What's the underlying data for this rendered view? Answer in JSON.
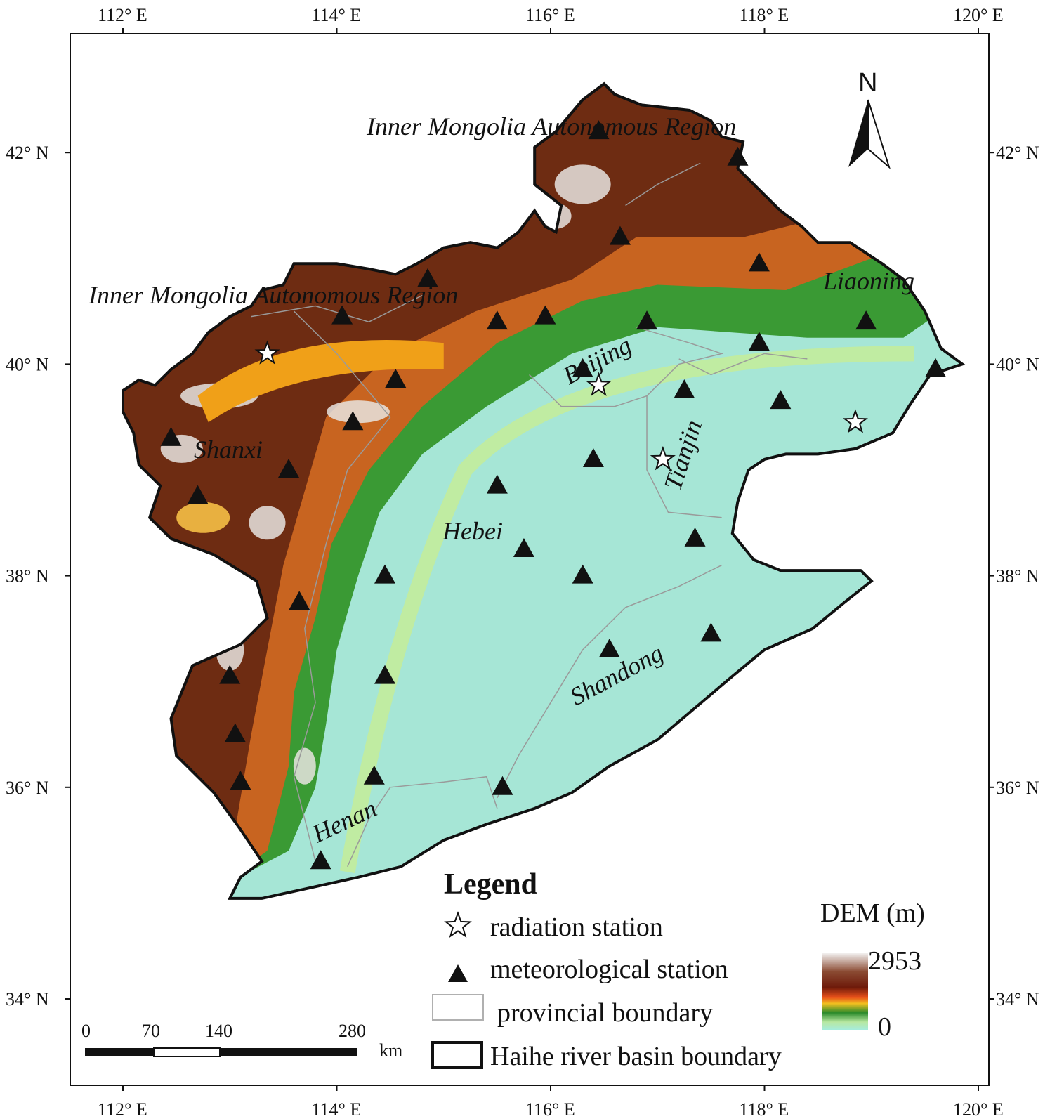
{
  "map": {
    "axes": {
      "longitude_labels": [
        "112° E",
        "114° E",
        "116° E",
        "118° E",
        "120° E"
      ],
      "latitude_labels": [
        "34° N",
        "36° N",
        "38° N",
        "40° N",
        "42° N"
      ]
    },
    "regions": {
      "inner_mongolia_north": "Inner Mongolia Autonomous Region",
      "inner_mongolia_west": "Inner Mongolia Autonomous Region",
      "liaoning": "Liaoning",
      "beijing": "Beijing",
      "tianjin": "Tianjin",
      "shanxi": "Shanxi",
      "hebei": "Hebei",
      "shandong": "Shandong",
      "henan": "Henan"
    },
    "north_arrow": {
      "label": "N"
    },
    "scale_bar": {
      "ticks": [
        "0",
        "70",
        "140",
        "280"
      ],
      "unit": "km"
    },
    "legend": {
      "title": "Legend",
      "radiation_station": "radiation station",
      "meteorological_station": "meteorological station",
      "provincial_boundary": "provincial boundary",
      "basin_boundary": "Haihe river basin boundary"
    },
    "dem": {
      "title": "DEM (m)",
      "max_label": "2953",
      "min_label": "0"
    },
    "colors": {
      "plain": "#a6e6d6",
      "low_green": "#2f9a2f",
      "mid_orange": "#e88a1a",
      "high_brown": "#6e2c12",
      "peak_white": "#f4f4f4"
    },
    "meteorological_stations": [
      {
        "lon": 116.45,
        "lat": 42.2
      },
      {
        "lon": 117.75,
        "lat": 41.95
      },
      {
        "lon": 116.65,
        "lat": 41.2
      },
      {
        "lon": 117.95,
        "lat": 40.95
      },
      {
        "lon": 114.85,
        "lat": 40.8
      },
      {
        "lon": 114.05,
        "lat": 40.45
      },
      {
        "lon": 115.5,
        "lat": 40.4
      },
      {
        "lon": 115.95,
        "lat": 40.45
      },
      {
        "lon": 116.9,
        "lat": 40.4
      },
      {
        "lon": 117.95,
        "lat": 40.2
      },
      {
        "lon": 118.95,
        "lat": 40.4
      },
      {
        "lon": 119.6,
        "lat": 39.95
      },
      {
        "lon": 114.55,
        "lat": 39.85
      },
      {
        "lon": 116.3,
        "lat": 39.95
      },
      {
        "lon": 117.25,
        "lat": 39.75
      },
      {
        "lon": 118.15,
        "lat": 39.65
      },
      {
        "lon": 112.45,
        "lat": 39.3
      },
      {
        "lon": 114.15,
        "lat": 39.45
      },
      {
        "lon": 113.55,
        "lat": 39.0
      },
      {
        "lon": 116.4,
        "lat": 39.1
      },
      {
        "lon": 112.7,
        "lat": 38.75
      },
      {
        "lon": 115.5,
        "lat": 38.85
      },
      {
        "lon": 115.75,
        "lat": 38.25
      },
      {
        "lon": 117.35,
        "lat": 38.35
      },
      {
        "lon": 114.45,
        "lat": 38.0
      },
      {
        "lon": 116.3,
        "lat": 38.0
      },
      {
        "lon": 113.65,
        "lat": 37.75
      },
      {
        "lon": 116.55,
        "lat": 37.3
      },
      {
        "lon": 117.5,
        "lat": 37.45
      },
      {
        "lon": 113.0,
        "lat": 37.05
      },
      {
        "lon": 114.45,
        "lat": 37.05
      },
      {
        "lon": 113.05,
        "lat": 36.5
      },
      {
        "lon": 113.1,
        "lat": 36.05
      },
      {
        "lon": 114.35,
        "lat": 36.1
      },
      {
        "lon": 115.55,
        "lat": 36.0
      },
      {
        "lon": 113.85,
        "lat": 35.3
      }
    ],
    "radiation_stations": [
      {
        "lon": 113.35,
        "lat": 40.1
      },
      {
        "lon": 116.45,
        "lat": 39.8
      },
      {
        "lon": 117.05,
        "lat": 39.1
      },
      {
        "lon": 118.85,
        "lat": 39.45
      }
    ]
  }
}
